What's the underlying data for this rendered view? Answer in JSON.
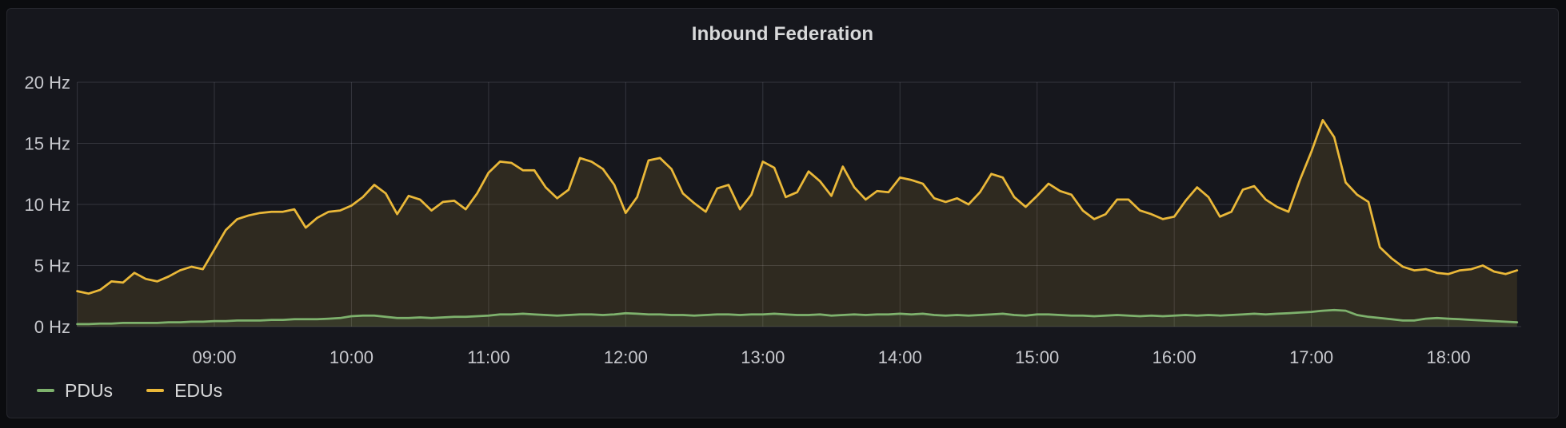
{
  "panel": {
    "title": "Inbound Federation"
  },
  "theme": {
    "page_bg": "#0b0c0f",
    "panel_bg": "#16171d",
    "panel_border": "#26272e",
    "grid_color": "rgba(204,204,220,0.17)",
    "tick_text_color": "#c7c8cd",
    "bright_text_color": "#d8d9da"
  },
  "legend": {
    "items": [
      {
        "label": "PDUs",
        "color": "#7EB26D"
      },
      {
        "label": "EDUs",
        "color": "#EAB839"
      }
    ]
  },
  "chart_data": {
    "type": "area",
    "title": "Inbound Federation",
    "unit": "Hz",
    "ylim": [
      0,
      20
    ],
    "grid": true,
    "legend_position": "bottom-left",
    "fill_opacity": 0.12,
    "line_width": 2.75,
    "x_range": [
      "08:00",
      "18:32"
    ],
    "y_ticks": [
      {
        "value": 0,
        "label": "0 Hz"
      },
      {
        "value": 5,
        "label": "5 Hz"
      },
      {
        "value": 10,
        "label": "10 Hz"
      },
      {
        "value": 15,
        "label": "15 Hz"
      },
      {
        "value": 20,
        "label": "20 Hz"
      }
    ],
    "x_ticks": [
      "09:00",
      "10:00",
      "11:00",
      "12:00",
      "13:00",
      "14:00",
      "15:00",
      "16:00",
      "17:00",
      "18:00"
    ],
    "x": [
      "08:00",
      "08:05",
      "08:10",
      "08:15",
      "08:20",
      "08:25",
      "08:30",
      "08:35",
      "08:40",
      "08:45",
      "08:50",
      "08:55",
      "09:00",
      "09:05",
      "09:10",
      "09:15",
      "09:20",
      "09:25",
      "09:30",
      "09:35",
      "09:40",
      "09:45",
      "09:50",
      "09:55",
      "10:00",
      "10:05",
      "10:10",
      "10:15",
      "10:20",
      "10:25",
      "10:30",
      "10:35",
      "10:40",
      "10:45",
      "10:50",
      "10:55",
      "11:00",
      "11:05",
      "11:10",
      "11:15",
      "11:20",
      "11:25",
      "11:30",
      "11:35",
      "11:40",
      "11:45",
      "11:50",
      "11:55",
      "12:00",
      "12:05",
      "12:10",
      "12:15",
      "12:20",
      "12:25",
      "12:30",
      "12:35",
      "12:40",
      "12:45",
      "12:50",
      "12:55",
      "13:00",
      "13:05",
      "13:10",
      "13:15",
      "13:20",
      "13:25",
      "13:30",
      "13:35",
      "13:40",
      "13:45",
      "13:50",
      "13:55",
      "14:00",
      "14:05",
      "14:10",
      "14:15",
      "14:20",
      "14:25",
      "14:30",
      "14:35",
      "14:40",
      "14:45",
      "14:50",
      "14:55",
      "15:00",
      "15:05",
      "15:10",
      "15:15",
      "15:20",
      "15:25",
      "15:30",
      "15:35",
      "15:40",
      "15:45",
      "15:50",
      "15:55",
      "16:00",
      "16:05",
      "16:10",
      "16:15",
      "16:20",
      "16:25",
      "16:30",
      "16:35",
      "16:40",
      "16:45",
      "16:50",
      "16:55",
      "17:00",
      "17:05",
      "17:10",
      "17:15",
      "17:20",
      "17:25",
      "17:30",
      "17:35",
      "17:40",
      "17:45",
      "17:50",
      "17:55",
      "18:00",
      "18:05",
      "18:10",
      "18:15",
      "18:20",
      "18:25",
      "18:30"
    ],
    "series": [
      {
        "name": "PDUs",
        "color": "#7EB26D",
        "values": [
          0.2,
          0.2,
          0.25,
          0.25,
          0.3,
          0.3,
          0.3,
          0.3,
          0.35,
          0.35,
          0.4,
          0.4,
          0.45,
          0.45,
          0.5,
          0.5,
          0.5,
          0.55,
          0.55,
          0.6,
          0.6,
          0.6,
          0.65,
          0.7,
          0.85,
          0.9,
          0.9,
          0.8,
          0.7,
          0.7,
          0.75,
          0.7,
          0.75,
          0.8,
          0.8,
          0.85,
          0.9,
          1.0,
          1.0,
          1.05,
          1.0,
          0.95,
          0.9,
          0.95,
          1.0,
          1.0,
          0.95,
          1.0,
          1.1,
          1.05,
          1.0,
          1.0,
          0.95,
          0.95,
          0.9,
          0.95,
          1.0,
          1.0,
          0.95,
          1.0,
          1.0,
          1.05,
          1.0,
          0.95,
          0.95,
          1.0,
          0.9,
          0.95,
          1.0,
          0.95,
          1.0,
          1.0,
          1.05,
          1.0,
          1.05,
          0.95,
          0.9,
          0.95,
          0.9,
          0.95,
          1.0,
          1.05,
          0.95,
          0.9,
          1.0,
          1.0,
          0.95,
          0.9,
          0.9,
          0.85,
          0.9,
          0.95,
          0.9,
          0.85,
          0.9,
          0.85,
          0.9,
          0.95,
          0.9,
          0.95,
          0.9,
          0.95,
          1.0,
          1.05,
          1.0,
          1.05,
          1.1,
          1.15,
          1.2,
          1.3,
          1.35,
          1.3,
          0.95,
          0.8,
          0.7,
          0.6,
          0.5,
          0.5,
          0.65,
          0.7,
          0.65,
          0.6,
          0.55,
          0.5,
          0.45,
          0.4,
          0.35
        ]
      },
      {
        "name": "EDUs",
        "color": "#EAB839",
        "values": [
          2.9,
          2.7,
          3.0,
          3.7,
          3.6,
          4.4,
          3.9,
          3.7,
          4.1,
          4.6,
          4.9,
          4.7,
          6.3,
          7.9,
          8.8,
          9.1,
          9.3,
          9.4,
          9.4,
          9.6,
          8.1,
          8.9,
          9.4,
          9.5,
          9.9,
          10.6,
          11.6,
          10.9,
          9.2,
          10.7,
          10.4,
          9.5,
          10.2,
          10.3,
          9.6,
          10.9,
          12.6,
          13.5,
          13.4,
          12.8,
          12.8,
          11.4,
          10.5,
          11.2,
          13.8,
          13.5,
          12.9,
          11.6,
          9.3,
          10.6,
          13.6,
          13.8,
          12.9,
          10.9,
          10.1,
          9.4,
          11.3,
          11.6,
          9.6,
          10.8,
          13.5,
          13.0,
          10.6,
          11.0,
          12.7,
          11.9,
          10.7,
          13.1,
          11.4,
          10.4,
          11.1,
          11.0,
          12.2,
          12.0,
          11.7,
          10.5,
          10.2,
          10.5,
          10.0,
          11.0,
          12.5,
          12.2,
          10.6,
          9.8,
          10.7,
          11.7,
          11.1,
          10.8,
          9.5,
          8.8,
          9.2,
          10.4,
          10.4,
          9.5,
          9.2,
          8.8,
          9.0,
          10.3,
          11.4,
          10.6,
          9.0,
          9.4,
          11.2,
          11.5,
          10.4,
          9.8,
          9.4,
          12.0,
          14.3,
          16.9,
          15.5,
          11.8,
          10.8,
          10.2,
          6.5,
          5.6,
          4.9,
          4.6,
          4.7,
          4.4,
          4.3,
          4.6,
          4.7,
          5.0,
          4.5,
          4.3,
          4.6
        ]
      }
    ]
  }
}
